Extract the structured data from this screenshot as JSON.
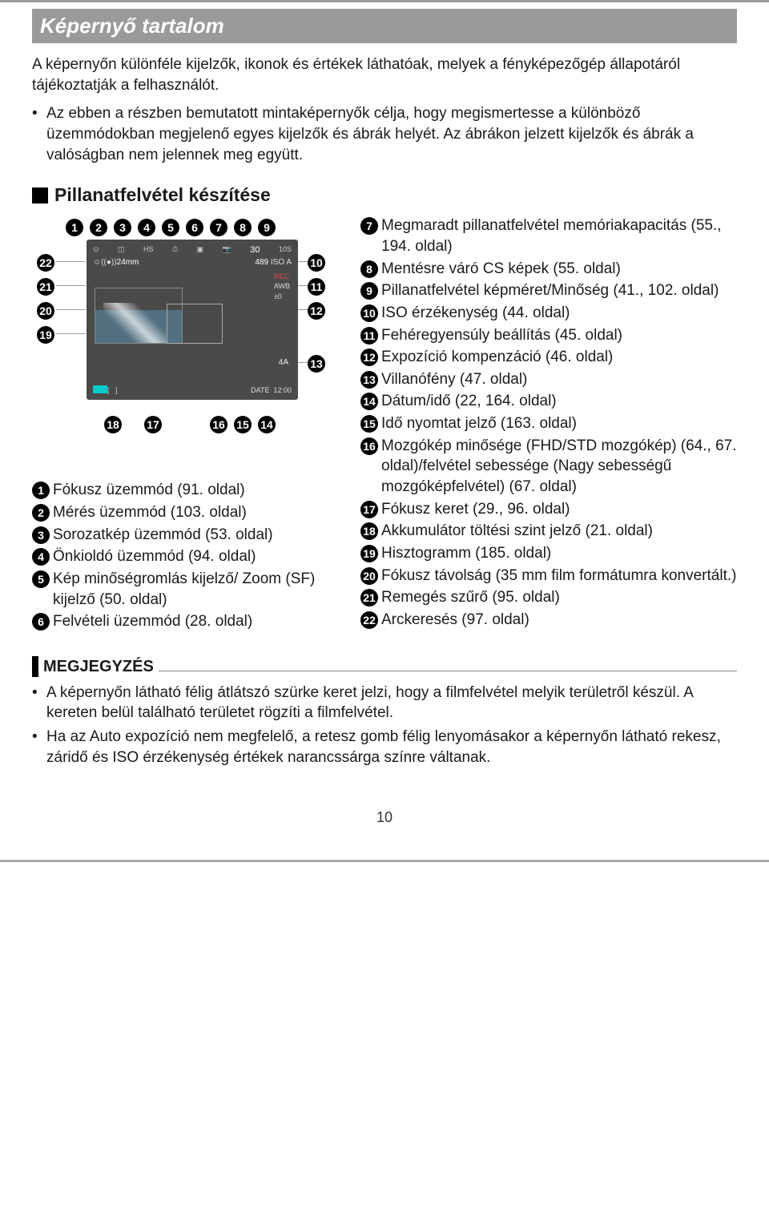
{
  "title": "Képernyő tartalom",
  "intro_p1": "A képernyőn különféle kijelzők, ikonok és értékek láthatóak, melyek a fényképezőgép állapotáról tájékoztatják a felhasználót.",
  "intro_p2": "Az ebben a részben bemutatott mintaképernyők célja, hogy megismertesse a különböző üzemmódokban megjelenő egyes kijelzők és ábrák helyét. Az ábrákon jelzett kijelzők és ábrák a valóságban nem jelennek meg együtt.",
  "section_title": "Pillanatfelvétel készítése",
  "lcd": {
    "focal": "24mm",
    "n30": "30",
    "n489": "489",
    "iso": "ISO A",
    "awb": "AWB",
    "size": "10S",
    "rec": "REC",
    "zeroev": "±0",
    "flash": "4A",
    "date": "DATE",
    "time": "12:00"
  },
  "diagram_numbers_top": [
    "1",
    "2",
    "3",
    "4",
    "5",
    "6",
    "7",
    "8",
    "9"
  ],
  "diagram_numbers_right": [
    "10",
    "11",
    "12",
    "13"
  ],
  "diagram_numbers_bottom": [
    "18",
    "17",
    "16",
    "15",
    "14"
  ],
  "diagram_numbers_left": [
    "22",
    "21",
    "20",
    "19"
  ],
  "legend_left": [
    {
      "n": "1",
      "t": "Fókusz üzemmód (91. oldal)"
    },
    {
      "n": "2",
      "t": "Mérés üzemmód (103. oldal)"
    },
    {
      "n": "3",
      "t": "Sorozatkép üzemmód (53. oldal)"
    },
    {
      "n": "4",
      "t": "Önkioldó üzemmód (94. oldal)"
    },
    {
      "n": "5",
      "t": "Kép minőségromlás kijelző/ Zoom (SF) kijelző (50. oldal)"
    },
    {
      "n": "6",
      "t": "Felvételi üzemmód (28. oldal)"
    }
  ],
  "legend_right": [
    {
      "n": "7",
      "t": "Megmaradt pillanatfelvétel memóriakapacitás (55., 194. oldal)"
    },
    {
      "n": "8",
      "t": "Mentésre váró CS képek (55. oldal)"
    },
    {
      "n": "9",
      "t": "Pillanatfelvétel képméret/Minőség (41., 102. oldal)"
    },
    {
      "n": "10",
      "t": "ISO érzékenység (44. oldal)"
    },
    {
      "n": "11",
      "t": "Fehéregyensúly beállítás (45. oldal)"
    },
    {
      "n": "12",
      "t": "Expozíció kompenzáció (46. oldal)"
    },
    {
      "n": "13",
      "t": "Villanófény (47. oldal)"
    },
    {
      "n": "14",
      "t": "Dátum/idő (22, 164. oldal)"
    },
    {
      "n": "15",
      "t": "Idő nyomtat jelző (163. oldal)"
    },
    {
      "n": "16",
      "t": "Mozgókép minősége (FHD/STD mozgókép) (64., 67. oldal)/felvétel sebessége (Nagy sebességű mozgóképfelvétel) (67. oldal)"
    },
    {
      "n": "17",
      "t": "Fókusz keret (29., 96. oldal)"
    },
    {
      "n": "18",
      "t": "Akkumulátor töltési szint jelző (21. oldal)"
    },
    {
      "n": "19",
      "t": "Hisztogramm (185. oldal)"
    },
    {
      "n": "20",
      "t": "Fókusz távolság (35 mm film formátumra konvertált.)"
    },
    {
      "n": "21",
      "t": "Remegés szűrő (95. oldal)"
    },
    {
      "n": "22",
      "t": "Arckeresés (97. oldal)"
    }
  ],
  "note_label": "MEGJEGYZÉS",
  "note_items": [
    "A képernyőn látható félig átlátszó szürke keret jelzi, hogy a filmfelvétel melyik területről készül. A kereten belül található területet rögzíti a filmfelvétel.",
    "Ha az Auto expozíció nem megfelelő, a retesz gomb félig lenyomásakor a képernyőn látható rekesz, záridő és ISO érzékenység értékek narancssárga színre váltanak."
  ],
  "page_number": "10"
}
